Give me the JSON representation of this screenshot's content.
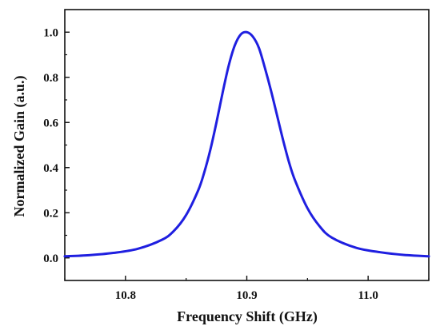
{
  "chart_data": {
    "type": "line",
    "title": "",
    "xlabel": "Frequency Shift (GHz)",
    "ylabel": "Normalized Gain (a.u.)",
    "xlim": [
      10.75,
      11.05
    ],
    "ylim": [
      -0.1,
      1.1
    ],
    "xticks": [
      10.8,
      10.9,
      11.0
    ],
    "xtick_labels": [
      "10.8",
      "10.9",
      "11.0"
    ],
    "yticks": [
      0.0,
      0.2,
      0.4,
      0.6,
      0.8,
      1.0
    ],
    "ytick_labels": [
      "0.0",
      "0.2",
      "0.4",
      "0.6",
      "0.8",
      "1.0"
    ],
    "grid": false,
    "legend": "none",
    "series": [
      {
        "color": "#1f1fe0",
        "x": [
          10.75,
          10.77,
          10.79,
          10.81,
          10.83,
          10.84,
          10.85,
          10.86,
          10.865,
          10.87,
          10.875,
          10.88,
          10.885,
          10.89,
          10.895,
          10.9,
          10.905,
          10.91,
          10.915,
          10.92,
          10.925,
          10.93,
          10.935,
          10.94,
          10.95,
          10.96,
          10.97,
          10.99,
          11.01,
          11.03,
          11.05
        ],
        "y": [
          0.007,
          0.012,
          0.022,
          0.04,
          0.08,
          0.12,
          0.19,
          0.3,
          0.38,
          0.48,
          0.6,
          0.73,
          0.85,
          0.94,
          0.99,
          1.0,
          0.98,
          0.93,
          0.84,
          0.74,
          0.63,
          0.52,
          0.42,
          0.34,
          0.22,
          0.14,
          0.09,
          0.045,
          0.025,
          0.013,
          0.007
        ]
      }
    ]
  }
}
